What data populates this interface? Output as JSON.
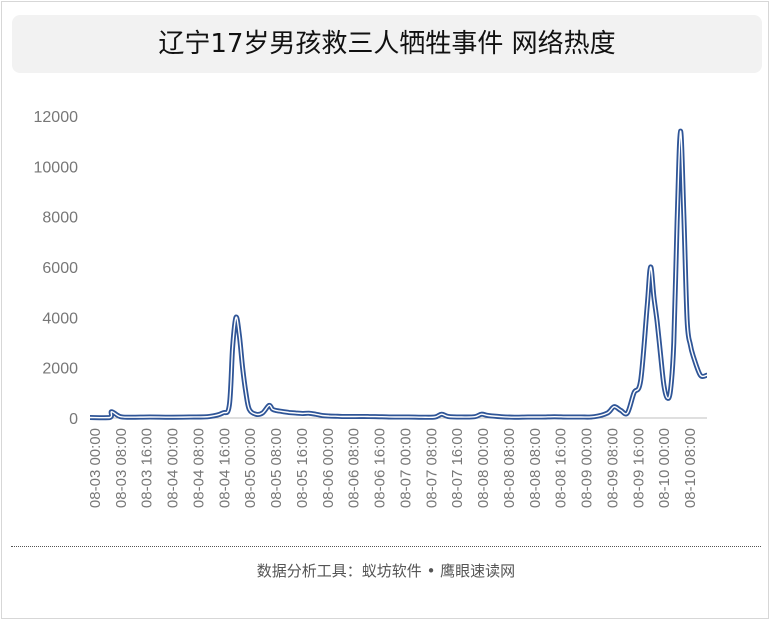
{
  "title": "辽宁17岁男孩救三人牺牲事件 网络热度",
  "footer": "数据分析工具：蚁坊软件 • 鹰眼速读网",
  "colors": {
    "line": "#2f5597",
    "axis": "#bfbfbf",
    "tick_text": "#777777"
  },
  "chart_data": {
    "type": "line",
    "title": "辽宁17岁男孩救三人牺牲事件 网络热度",
    "xlabel": "",
    "ylabel": "",
    "ylim": [
      0,
      12000
    ],
    "yticks": [
      0,
      2000,
      4000,
      6000,
      8000,
      10000,
      12000
    ],
    "x_tick_labels": [
      "08-03 00:00",
      "08-03 08:00",
      "08-03 16:00",
      "08-04 00:00",
      "08-04 08:00",
      "08-04 16:00",
      "08-05 00:00",
      "08-05 08:00",
      "08-05 16:00",
      "08-06 00:00",
      "08-06 08:00",
      "08-06 16:00",
      "08-07 00:00",
      "08-07 08:00",
      "08-07 16:00",
      "08-08 00:00",
      "08-08 08:00",
      "08-08 08:00",
      "08-08 16:00",
      "08-09 00:00",
      "08-09 08:00",
      "08-09 16:00",
      "08-10 00:00",
      "08-10 08:00"
    ],
    "x_hours_range": [
      0,
      186
    ],
    "grid": false,
    "legend": "none",
    "series": [
      {
        "x_hours": [
          0,
          6,
          6.5,
          9,
          12,
          18,
          24,
          30,
          36,
          40,
          42,
          43,
          44,
          45,
          46,
          47,
          48,
          50,
          52,
          54,
          55,
          56,
          58,
          60,
          62,
          64,
          66,
          68,
          70,
          72,
          74,
          76,
          80,
          84,
          88,
          92,
          96,
          100,
          104,
          106,
          108,
          112,
          116,
          118,
          120,
          124,
          128,
          132,
          136,
          140,
          144,
          148,
          152,
          156,
          158,
          160,
          162,
          164,
          166,
          168,
          169,
          170,
          171,
          172,
          173,
          174,
          175,
          176,
          177,
          178,
          179,
          180,
          181,
          182,
          184,
          186
        ],
        "values": [
          20,
          20,
          250,
          60,
          30,
          40,
          30,
          40,
          60,
          200,
          500,
          2800,
          4000,
          3300,
          2000,
          1000,
          350,
          150,
          200,
          500,
          350,
          300,
          260,
          220,
          200,
          180,
          190,
          150,
          100,
          80,
          70,
          60,
          60,
          60,
          50,
          40,
          40,
          30,
          40,
          150,
          60,
          40,
          50,
          150,
          100,
          50,
          30,
          40,
          40,
          50,
          40,
          40,
          50,
          200,
          450,
          300,
          200,
          1000,
          1500,
          4500,
          6000,
          4800,
          3800,
          2500,
          1300,
          800,
          1100,
          3000,
          7800,
          11400,
          8100,
          3900,
          2900,
          2400,
          1700,
          1700
        ]
      }
    ]
  }
}
